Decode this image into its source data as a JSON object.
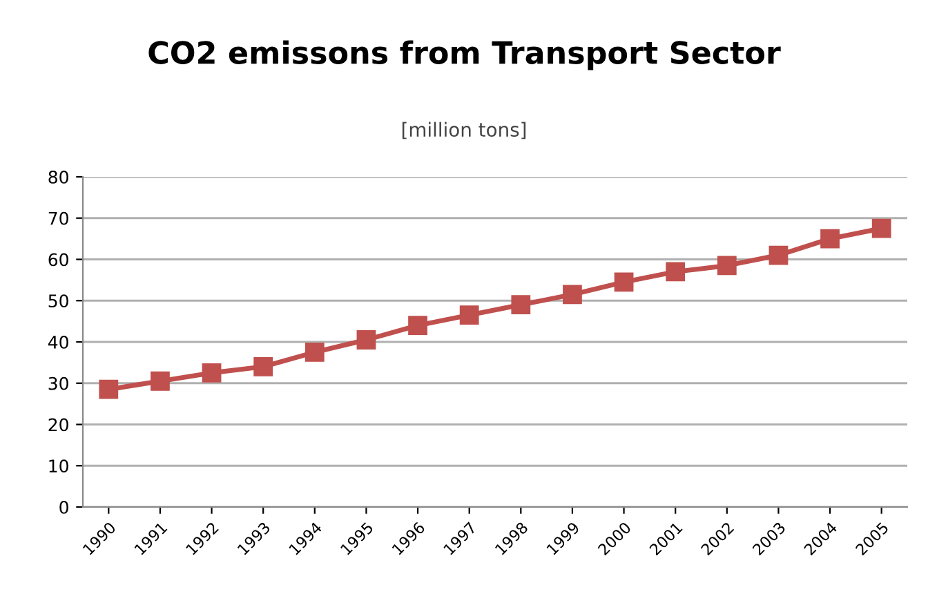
{
  "chart_data": {
    "type": "line",
    "title": "CO2 emissons from Transport Sector",
    "subtitle": "[million tons]",
    "categories": [
      "1990",
      "1991",
      "1992",
      "1993",
      "1994",
      "1995",
      "1996",
      "1997",
      "1998",
      "1999",
      "2000",
      "2001",
      "2002",
      "2003",
      "2004",
      "2005"
    ],
    "series": [
      {
        "color": "#c0504d",
        "values": [
          28.5,
          30.5,
          32.5,
          34,
          37.5,
          40.5,
          44,
          46.5,
          49,
          51.5,
          54.5,
          57,
          58.5,
          61,
          65,
          67.5
        ]
      }
    ],
    "ylim": [
      0,
      80
    ],
    "yticks": [
      0,
      10,
      20,
      30,
      40,
      50,
      60,
      70,
      80
    ],
    "grid": "y",
    "marker": "square",
    "line_style": "solid",
    "legend": false
  }
}
